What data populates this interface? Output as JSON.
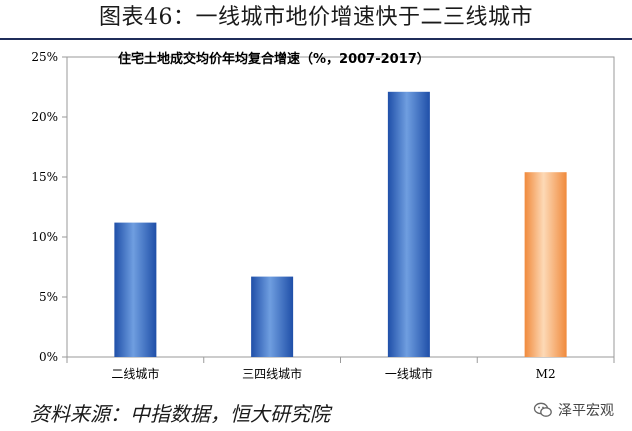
{
  "header": {
    "title": "图表46：一线城市地价增速快于二三线城市"
  },
  "chart_data": {
    "type": "bar",
    "title": "住宅土地成交均价年均复合增速（%，2007-2017）",
    "categories": [
      "二线城市",
      "三四线城市",
      "一线城市",
      "M2"
    ],
    "values": [
      11.2,
      6.7,
      22.1,
      15.4
    ],
    "y_tick_labels": [
      "0%",
      "5%",
      "10%",
      "15%",
      "20%",
      "25%"
    ],
    "ylim": [
      0,
      25
    ],
    "y_unit": "%",
    "grid": false,
    "colors": {
      "city": "#3f72c4",
      "m2": "#f0954a"
    }
  },
  "footer": {
    "source": "资料来源：中指数据，恒大研究院"
  },
  "brand": {
    "name": "泽平宏观",
    "icon": "wechat-icon"
  }
}
